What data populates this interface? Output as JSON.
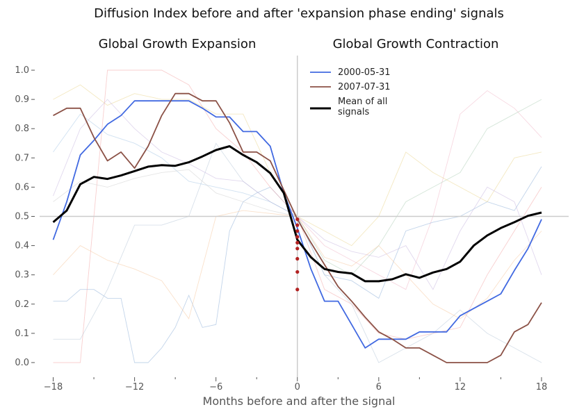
{
  "chart_data": {
    "type": "line",
    "title": "Diffusion Index before and after 'expansion phase ending' signals",
    "left_panel_title": "Global Growth Expansion",
    "right_panel_title": "Global Growth Contraction",
    "xlabel": "Months before and after the signal",
    "ylabel": "",
    "xlim": [
      -19,
      20
    ],
    "ylim": [
      -0.05,
      1.05
    ],
    "x_ticks": [
      -18,
      -12,
      -6,
      0,
      6,
      12,
      18
    ],
    "x_tick_labels": [
      "−18",
      "−12",
      "−6",
      "0",
      "6",
      "12",
      "18"
    ],
    "y_ticks": [
      0.0,
      0.1,
      0.2,
      0.3,
      0.4,
      0.5,
      0.6,
      0.7,
      0.8,
      0.9,
      1.0
    ],
    "y_tick_labels": [
      "0.0",
      "0.1",
      "0.2",
      "0.3",
      "0.4",
      "0.5",
      "0.6",
      "0.7",
      "0.8",
      "0.9",
      "1.0"
    ],
    "vline_x": 0,
    "hline_y": 0.5,
    "grid": false,
    "legend_position": "top-right of left half",
    "x": [
      -18,
      -17,
      -16,
      -15,
      -14,
      -13,
      -12,
      -11,
      -10,
      -9,
      -8,
      -7,
      -6,
      -5,
      -4,
      -3,
      -2,
      -1,
      0,
      1,
      2,
      3,
      4,
      5,
      6,
      7,
      8,
      9,
      10,
      11,
      12,
      13,
      14,
      15,
      16,
      17,
      18
    ],
    "series": [
      {
        "name": "2000-05-31",
        "color": "#4169e1",
        "values": [
          0.42,
          0.55,
          0.71,
          0.76,
          0.815,
          0.845,
          0.895,
          0.895,
          0.895,
          0.895,
          0.895,
          0.87,
          0.84,
          0.84,
          0.79,
          0.79,
          0.74,
          0.58,
          0.46,
          0.32,
          0.21,
          0.21,
          0.13,
          0.05,
          0.08,
          0.08,
          0.08,
          0.105,
          0.105,
          0.105,
          0.16,
          0.185,
          0.21,
          0.235,
          0.315,
          0.39,
          0.49
        ]
      },
      {
        "name": "2007-07-31",
        "color": "#8b5146",
        "values": [
          0.845,
          0.87,
          0.87,
          0.77,
          0.69,
          0.72,
          0.665,
          0.74,
          0.845,
          0.92,
          0.92,
          0.895,
          0.895,
          0.82,
          0.72,
          0.72,
          0.69,
          0.59,
          0.49,
          0.41,
          0.335,
          0.26,
          0.21,
          0.155,
          0.105,
          0.08,
          0.05,
          0.05,
          0.025,
          0.0,
          0.0,
          0.0,
          0.0,
          0.025,
          0.105,
          0.13,
          0.205
        ]
      },
      {
        "name": "Mean of all\nsignals",
        "color": "#000000",
        "values": [
          0.48,
          0.52,
          0.61,
          0.635,
          0.628,
          0.64,
          0.655,
          0.67,
          0.675,
          0.673,
          0.685,
          0.705,
          0.727,
          0.74,
          0.71,
          0.685,
          0.648,
          0.58,
          0.42,
          0.36,
          0.32,
          0.31,
          0.305,
          0.278,
          0.278,
          0.285,
          0.302,
          0.29,
          0.308,
          0.32,
          0.345,
          0.4,
          0.435,
          0.46,
          0.48,
          0.502,
          0.513
        ]
      }
    ],
    "signal_points": {
      "color": "#b22222",
      "x": 0,
      "values": [
        0.49,
        0.47,
        0.45,
        0.43,
        0.41,
        0.39,
        0.355,
        0.31,
        0.25
      ]
    },
    "background_lines": {
      "colors": [
        "#8fb0d8",
        "#f2a8a8",
        "#e9d68e",
        "#b8c8d8",
        "#c9b8e0",
        "#f5c9a0",
        "#a9c9e6",
        "#d0d0d0",
        "#f0b8c8",
        "#b0d0b8"
      ],
      "lines": [
        {
          "x": [
            -18,
            -17,
            -16,
            -15,
            -14,
            -13,
            -12,
            -11,
            -10,
            -9,
            -8,
            -7,
            -6,
            -5,
            -4,
            -3,
            -2,
            -1,
            0
          ],
          "values": [
            0.21,
            0.21,
            0.25,
            0.25,
            0.22,
            0.22,
            0.0,
            0.0,
            0.05,
            0.12,
            0.23,
            0.12,
            0.13,
            0.45,
            0.55,
            0.58,
            0.6,
            0.55,
            0.5
          ]
        },
        {
          "x": [
            -18,
            -16,
            -14,
            -12,
            -10,
            -8,
            -6,
            -4,
            -2,
            0
          ],
          "values": [
            0.0,
            0.0,
            1.0,
            1.0,
            1.0,
            0.95,
            0.8,
            0.72,
            0.6,
            0.5
          ]
        },
        {
          "x": [
            -18,
            -16,
            -14,
            -12,
            -10,
            -8,
            -6,
            -4,
            -2,
            0
          ],
          "values": [
            0.9,
            0.95,
            0.88,
            0.92,
            0.9,
            0.9,
            0.85,
            0.85,
            0.65,
            0.5
          ]
        },
        {
          "x": [
            -18,
            -16,
            -14,
            -12,
            -10,
            -8,
            -6,
            -4,
            -2,
            0
          ],
          "values": [
            0.08,
            0.08,
            0.25,
            0.47,
            0.47,
            0.5,
            0.75,
            0.62,
            0.55,
            0.5
          ]
        },
        {
          "x": [
            -18,
            -16,
            -14,
            -12,
            -10,
            -8,
            -6,
            -4,
            -2,
            0
          ],
          "values": [
            0.57,
            0.8,
            0.9,
            0.8,
            0.72,
            0.68,
            0.63,
            0.62,
            0.55,
            0.5
          ]
        },
        {
          "x": [
            -18,
            -16,
            -14,
            -12,
            -10,
            -8,
            -6,
            -4,
            -2,
            0
          ],
          "values": [
            0.3,
            0.4,
            0.35,
            0.32,
            0.28,
            0.15,
            0.5,
            0.52,
            0.51,
            0.5
          ]
        },
        {
          "x": [
            -18,
            -16,
            -14,
            -12,
            -10,
            -8,
            -6,
            -4,
            -2,
            0
          ],
          "values": [
            0.72,
            0.85,
            0.78,
            0.75,
            0.7,
            0.62,
            0.6,
            0.58,
            0.55,
            0.5
          ]
        },
        {
          "x": [
            -18,
            -16,
            -14,
            -12,
            -10,
            -8,
            -6,
            -4,
            -2,
            0
          ],
          "values": [
            0.55,
            0.62,
            0.6,
            0.63,
            0.65,
            0.66,
            0.58,
            0.55,
            0.52,
            0.5
          ]
        },
        {
          "x": [
            0,
            2,
            4,
            6,
            8,
            10,
            12,
            14,
            16,
            18
          ],
          "values": [
            0.5,
            0.4,
            0.35,
            0.3,
            0.25,
            0.5,
            0.85,
            0.93,
            0.87,
            0.77
          ]
        },
        {
          "x": [
            0,
            2,
            4,
            6,
            8,
            10,
            12,
            14,
            16,
            18
          ],
          "values": [
            0.5,
            0.35,
            0.3,
            0.4,
            0.55,
            0.6,
            0.65,
            0.8,
            0.85,
            0.9
          ]
        },
        {
          "x": [
            0,
            2,
            4,
            6,
            8,
            10,
            12,
            14,
            16,
            18
          ],
          "values": [
            0.5,
            0.3,
            0.28,
            0.22,
            0.45,
            0.48,
            0.5,
            0.55,
            0.52,
            0.67
          ]
        },
        {
          "x": [
            0,
            2,
            4,
            6,
            8,
            10,
            12,
            14,
            16,
            18
          ],
          "values": [
            0.5,
            0.25,
            0.2,
            0.1,
            0.08,
            0.1,
            0.12,
            0.3,
            0.45,
            0.6
          ]
        },
        {
          "x": [
            0,
            2,
            4,
            6,
            8,
            10,
            12,
            14,
            16,
            18
          ],
          "values": [
            0.5,
            0.45,
            0.4,
            0.5,
            0.72,
            0.65,
            0.6,
            0.55,
            0.7,
            0.72
          ]
        },
        {
          "x": [
            0,
            2,
            4,
            6,
            8,
            10,
            12,
            14,
            16,
            18
          ],
          "values": [
            0.5,
            0.3,
            0.2,
            0.0,
            0.05,
            0.1,
            0.18,
            0.1,
            0.05,
            0.0
          ]
        },
        {
          "x": [
            0,
            2,
            4,
            6,
            8,
            10,
            12,
            14,
            16,
            18
          ],
          "values": [
            0.5,
            0.42,
            0.38,
            0.36,
            0.4,
            0.25,
            0.45,
            0.6,
            0.55,
            0.3
          ]
        },
        {
          "x": [
            0,
            2,
            4,
            6,
            8,
            10,
            12,
            14,
            16,
            18
          ],
          "values": [
            0.5,
            0.36,
            0.33,
            0.4,
            0.3,
            0.2,
            0.15,
            0.22,
            0.35,
            0.45
          ]
        }
      ]
    }
  }
}
